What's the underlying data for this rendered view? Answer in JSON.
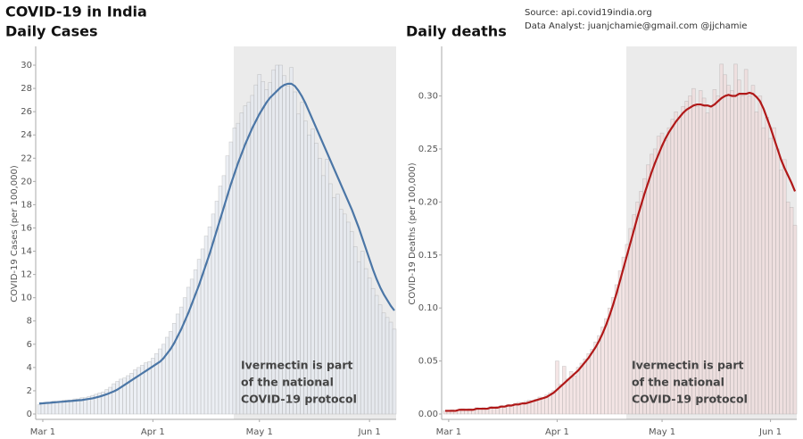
{
  "title": "COVID-19 in India",
  "source": [
    "Source: api.covid19india.org",
    "Data Analyst:  juanjchamie@gmail.com @jjchamie"
  ],
  "chart_data": [
    {
      "type": "bar-line",
      "title": "Daily Cases",
      "y_label": "COVID-19 Cases (per 100,000)",
      "annotation": [
        "Ivermectin is part",
        "of the national",
        "COVID-19 protocol"
      ],
      "categories": [
        null,
        "Mar 1",
        null,
        null,
        null,
        null,
        null,
        null,
        null,
        null,
        null,
        null,
        null,
        null,
        null,
        null,
        null,
        null,
        null,
        null,
        null,
        null,
        null,
        null,
        null,
        null,
        null,
        null,
        null,
        null,
        null,
        null,
        "Apr 1",
        null,
        null,
        null,
        null,
        null,
        null,
        null,
        null,
        null,
        null,
        null,
        null,
        null,
        null,
        null,
        null,
        null,
        null,
        null,
        null,
        null,
        null,
        null,
        null,
        null,
        null,
        null,
        null,
        null,
        "May 1",
        null,
        null,
        null,
        null,
        null,
        null,
        null,
        null,
        null,
        null,
        null,
        null,
        null,
        null,
        null,
        null,
        null,
        null,
        null,
        null,
        null,
        null,
        null,
        null,
        null,
        null,
        null,
        null,
        null,
        null,
        "Jun 1",
        null,
        null,
        null,
        null,
        null,
        null,
        null
      ],
      "ylim": [
        0,
        31
      ],
      "yticks": [
        0,
        2,
        4,
        6,
        8,
        10,
        12,
        14,
        16,
        18,
        20,
        22,
        24,
        26,
        28,
        30
      ],
      "series": [
        {
          "kind": "bar",
          "color": "#e4e8ef",
          "values": [
            0.8,
            0.9,
            1.0,
            1.0,
            1.1,
            1.1,
            1.1,
            1.2,
            1.2,
            1.2,
            1.3,
            1.3,
            1.4,
            1.4,
            1.5,
            1.6,
            1.7,
            1.8,
            1.9,
            2.1,
            2.3,
            2.6,
            2.8,
            3.0,
            3.1,
            3.3,
            3.5,
            3.8,
            4.0,
            4.2,
            4.4,
            4.5,
            4.8,
            5.2,
            5.6,
            6.0,
            6.6,
            7.1,
            7.8,
            8.6,
            9.2,
            10.0,
            10.9,
            11.6,
            12.4,
            13.3,
            14.2,
            15.3,
            16.1,
            17.2,
            18.3,
            19.6,
            20.5,
            22.2,
            23.4,
            24.6,
            25.0,
            25.9,
            26.5,
            26.8,
            27.4,
            28.3,
            29.2,
            28.6,
            27.9,
            28.5,
            29.6,
            30.0,
            30.0,
            29.1,
            28.2,
            29.8,
            27.7,
            25.8,
            26.8,
            25.2,
            24.0,
            24.5,
            23.3,
            22.0,
            20.5,
            21.9,
            19.8,
            18.6,
            18.9,
            17.6,
            17.2,
            16.5,
            15.7,
            14.4,
            13.1,
            14.0,
            12.5,
            11.7,
            10.8,
            10.2,
            9.4,
            8.7,
            8.3,
            7.9,
            7.3
          ]
        },
        {
          "kind": "line",
          "color": "#4b76a6",
          "values": [
            0.9,
            0.92,
            0.95,
            0.97,
            1.0,
            1.02,
            1.05,
            1.07,
            1.1,
            1.12,
            1.15,
            1.18,
            1.2,
            1.25,
            1.3,
            1.35,
            1.42,
            1.5,
            1.6,
            1.7,
            1.82,
            1.95,
            2.1,
            2.3,
            2.5,
            2.7,
            2.9,
            3.1,
            3.3,
            3.5,
            3.7,
            3.9,
            4.1,
            4.3,
            4.5,
            4.8,
            5.2,
            5.6,
            6.1,
            6.7,
            7.3,
            8.0,
            8.7,
            9.5,
            10.3,
            11.1,
            12.0,
            12.9,
            13.8,
            14.8,
            15.8,
            16.8,
            17.8,
            18.8,
            19.8,
            20.7,
            21.6,
            22.4,
            23.2,
            23.9,
            24.6,
            25.2,
            25.8,
            26.3,
            26.8,
            27.2,
            27.5,
            27.8,
            28.1,
            28.3,
            28.4,
            28.4,
            28.2,
            27.8,
            27.3,
            26.7,
            26.0,
            25.3,
            24.6,
            23.9,
            23.2,
            22.5,
            21.8,
            21.1,
            20.4,
            19.7,
            19.0,
            18.3,
            17.6,
            16.8,
            16.0,
            15.1,
            14.2,
            13.3,
            12.4,
            11.6,
            10.9,
            10.3,
            9.8,
            9.3,
            8.9
          ]
        }
      ]
    },
    {
      "type": "bar-line",
      "title": "Daily deaths",
      "y_label": "COVID-19 Deaths (per 100,000)",
      "annotation": [
        "Ivermectin is part",
        "of the national",
        "COVID-19 protocol"
      ],
      "categories": [
        null,
        "Mar 1",
        null,
        null,
        null,
        null,
        null,
        null,
        null,
        null,
        null,
        null,
        null,
        null,
        null,
        null,
        null,
        null,
        null,
        null,
        null,
        null,
        null,
        null,
        null,
        null,
        null,
        null,
        null,
        null,
        null,
        null,
        "Apr 1",
        null,
        null,
        null,
        null,
        null,
        null,
        null,
        null,
        null,
        null,
        null,
        null,
        null,
        null,
        null,
        null,
        null,
        null,
        null,
        null,
        null,
        null,
        null,
        null,
        null,
        null,
        null,
        null,
        null,
        "May 1",
        null,
        null,
        null,
        null,
        null,
        null,
        null,
        null,
        null,
        null,
        null,
        null,
        null,
        null,
        null,
        null,
        null,
        null,
        null,
        null,
        null,
        null,
        null,
        null,
        null,
        null,
        null,
        null,
        null,
        null,
        "Jun 1",
        null,
        null,
        null,
        null,
        null,
        null,
        null
      ],
      "ylim": [
        0,
        0.34
      ],
      "yticks": [
        {
          "value": 0,
          "label": "0.00"
        },
        {
          "value": 0.05,
          "label": "0.05"
        },
        {
          "value": 0.1,
          "label": "0.10"
        },
        {
          "value": 0.15,
          "label": "0.15"
        },
        {
          "value": 0.2,
          "label": "0.20"
        },
        {
          "value": 0.25,
          "label": "0.25"
        },
        {
          "value": 0.3,
          "label": "0.30"
        }
      ],
      "series": [
        {
          "kind": "bar",
          "color": "#f0dada",
          "values": [
            0.003,
            0.003,
            0.004,
            0.003,
            0.004,
            0.005,
            0.004,
            0.005,
            0.004,
            0.006,
            0.005,
            0.006,
            0.005,
            0.007,
            0.006,
            0.007,
            0.008,
            0.007,
            0.009,
            0.008,
            0.01,
            0.011,
            0.01,
            0.012,
            0.013,
            0.012,
            0.014,
            0.016,
            0.015,
            0.018,
            0.02,
            0.022,
            0.05,
            0.028,
            0.045,
            0.033,
            0.04,
            0.036,
            0.044,
            0.048,
            0.052,
            0.057,
            0.061,
            0.068,
            0.074,
            0.082,
            0.09,
            0.1,
            0.11,
            0.122,
            0.135,
            0.148,
            0.16,
            0.175,
            0.188,
            0.2,
            0.21,
            0.222,
            0.235,
            0.245,
            0.25,
            0.262,
            0.265,
            0.258,
            0.27,
            0.278,
            0.285,
            0.28,
            0.29,
            0.295,
            0.3,
            0.307,
            0.29,
            0.305,
            0.298,
            0.284,
            0.29,
            0.306,
            0.3,
            0.33,
            0.32,
            0.31,
            0.305,
            0.33,
            0.315,
            0.3,
            0.325,
            0.3,
            0.31,
            0.285,
            0.3,
            0.27,
            0.28,
            0.26,
            0.27,
            0.25,
            0.23,
            0.24,
            0.2,
            0.195,
            0.178
          ]
        },
        {
          "kind": "line",
          "color": "#b01818",
          "values": [
            0.003,
            0.003,
            0.003,
            0.003,
            0.004,
            0.004,
            0.004,
            0.004,
            0.004,
            0.005,
            0.005,
            0.005,
            0.005,
            0.006,
            0.006,
            0.006,
            0.007,
            0.007,
            0.008,
            0.008,
            0.009,
            0.009,
            0.01,
            0.01,
            0.011,
            0.012,
            0.013,
            0.014,
            0.015,
            0.016,
            0.018,
            0.02,
            0.023,
            0.026,
            0.029,
            0.032,
            0.035,
            0.038,
            0.041,
            0.045,
            0.049,
            0.053,
            0.058,
            0.063,
            0.069,
            0.076,
            0.084,
            0.093,
            0.103,
            0.114,
            0.126,
            0.138,
            0.15,
            0.162,
            0.174,
            0.186,
            0.197,
            0.208,
            0.218,
            0.228,
            0.237,
            0.245,
            0.253,
            0.26,
            0.266,
            0.271,
            0.276,
            0.28,
            0.284,
            0.287,
            0.289,
            0.291,
            0.292,
            0.292,
            0.291,
            0.291,
            0.29,
            0.292,
            0.295,
            0.298,
            0.3,
            0.301,
            0.3,
            0.3,
            0.302,
            0.302,
            0.302,
            0.303,
            0.302,
            0.299,
            0.295,
            0.288,
            0.279,
            0.27,
            0.26,
            0.25,
            0.24,
            0.232,
            0.225,
            0.218,
            0.21
          ]
        }
      ]
    }
  ]
}
